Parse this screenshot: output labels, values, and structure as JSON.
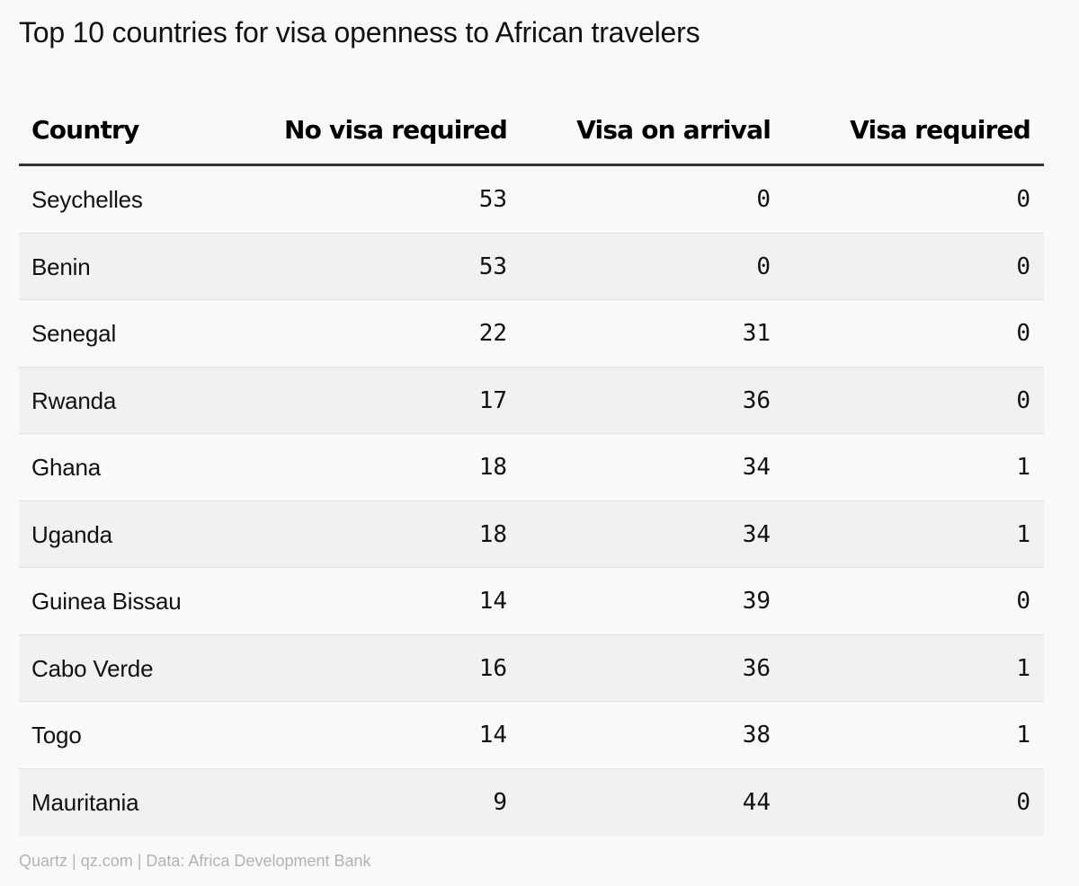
{
  "title": "Top 10 countries for visa openness to African travelers",
  "source": "Quartz | qz.com | Data: Africa Development Bank",
  "chart_data": {
    "type": "table",
    "title": "Top 10 countries for visa openness to African travelers",
    "columns": [
      "Country",
      "No visa required",
      "Visa on arrival",
      "Visa required"
    ],
    "rows": [
      [
        "Seychelles",
        "53",
        "0",
        "0"
      ],
      [
        "Benin",
        "53",
        "0",
        "0"
      ],
      [
        "Senegal",
        "22",
        "31",
        "0"
      ],
      [
        "Rwanda",
        "17",
        "36",
        "0"
      ],
      [
        "Ghana",
        "18",
        "34",
        "1"
      ],
      [
        "Uganda",
        "18",
        "34",
        "1"
      ],
      [
        "Guinea Bissau",
        "14",
        "39",
        "0"
      ],
      [
        "Cabo Verde",
        "16",
        "36",
        "1"
      ],
      [
        "Togo",
        "14",
        "38",
        "1"
      ],
      [
        "Mauritania",
        "9",
        "44",
        "0"
      ]
    ]
  }
}
